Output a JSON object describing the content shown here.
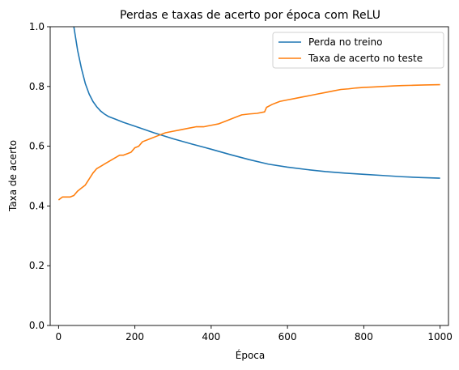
{
  "chart_data": {
    "type": "line",
    "title": "Perdas e taxas de acerto por época com ReLU",
    "xlabel": "Época",
    "ylabel": "Taxa de acerto",
    "xlim": [
      -22,
      1022
    ],
    "ylim": [
      0.0,
      1.0
    ],
    "xticks": [
      0,
      200,
      400,
      600,
      800,
      1000
    ],
    "yticks": [
      0.0,
      0.2,
      0.4,
      0.6,
      0.8,
      1.0
    ],
    "xtick_labels": [
      "0",
      "200",
      "400",
      "600",
      "800",
      "1000"
    ],
    "ytick_labels": [
      "0.0",
      "0.2",
      "0.4",
      "0.6",
      "0.8",
      "1.0"
    ],
    "grid": false,
    "legend_position": "top-right",
    "series": [
      {
        "name": "Perda no treino",
        "color": "#1f77b4",
        "x": [
          40,
          50,
          60,
          70,
          80,
          90,
          100,
          110,
          120,
          130,
          150,
          170,
          200,
          250,
          300,
          350,
          400,
          450,
          500,
          550,
          600,
          650,
          700,
          750,
          800,
          850,
          900,
          950,
          1000
        ],
        "y": [
          1.0,
          0.92,
          0.86,
          0.81,
          0.775,
          0.75,
          0.732,
          0.718,
          0.708,
          0.7,
          0.69,
          0.68,
          0.667,
          0.645,
          0.625,
          0.607,
          0.59,
          0.572,
          0.555,
          0.54,
          0.53,
          0.522,
          0.515,
          0.51,
          0.506,
          0.502,
          0.498,
          0.495,
          0.493
        ]
      },
      {
        "name": "Taxa de acerto no teste",
        "color": "#ff7f0e",
        "x": [
          0,
          5,
          10,
          20,
          30,
          40,
          50,
          60,
          70,
          80,
          90,
          100,
          120,
          140,
          160,
          170,
          180,
          190,
          200,
          210,
          220,
          240,
          260,
          280,
          300,
          320,
          340,
          360,
          380,
          400,
          420,
          440,
          460,
          480,
          500,
          520,
          540,
          545,
          560,
          580,
          600,
          620,
          640,
          660,
          680,
          700,
          720,
          740,
          760,
          780,
          800,
          820,
          850,
          880,
          900,
          930,
          960,
          1000
        ],
        "y": [
          0.42,
          0.425,
          0.43,
          0.43,
          0.43,
          0.435,
          0.45,
          0.46,
          0.47,
          0.49,
          0.51,
          0.525,
          0.54,
          0.555,
          0.57,
          0.57,
          0.575,
          0.58,
          0.595,
          0.6,
          0.615,
          0.625,
          0.635,
          0.645,
          0.65,
          0.655,
          0.66,
          0.665,
          0.665,
          0.67,
          0.675,
          0.685,
          0.695,
          0.705,
          0.708,
          0.71,
          0.715,
          0.73,
          0.74,
          0.75,
          0.755,
          0.76,
          0.765,
          0.77,
          0.775,
          0.78,
          0.785,
          0.79,
          0.792,
          0.795,
          0.797,
          0.798,
          0.8,
          0.802,
          0.803,
          0.804,
          0.805,
          0.806
        ]
      }
    ]
  }
}
